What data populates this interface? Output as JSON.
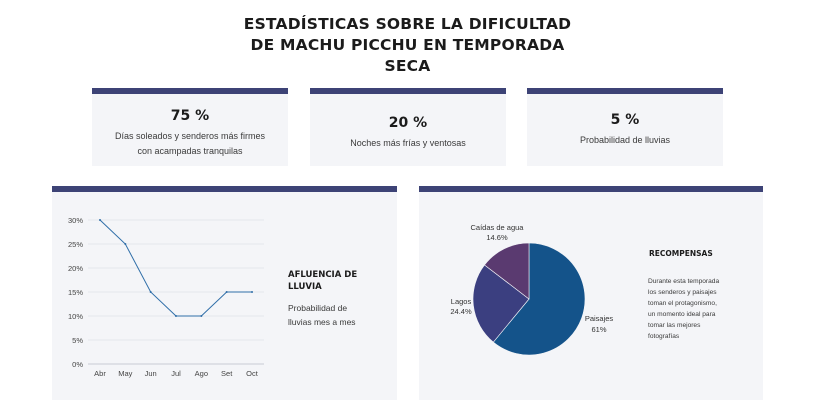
{
  "title": {
    "line1": "ESTADÍSTICAS SOBRE LA DIFICULTAD",
    "line2": "DE MACHU PICCHU EN TEMPORADA",
    "line3": "SECA"
  },
  "stats": [
    {
      "value": "75 %",
      "desc_line1": "Días soleados y senderos más firmes",
      "desc_line2": "con acampadas tranquilas"
    },
    {
      "value": "20 %",
      "desc_line1": "Noches más frías y ventosas",
      "desc_line2": ""
    },
    {
      "value": "5 %",
      "desc_line1": "Probabilidad de lluvias",
      "desc_line2": ""
    }
  ],
  "rain_panel": {
    "heading_line1": "AFLUENCIA DE",
    "heading_line2": "LLUVIA",
    "desc_line1": "Probabilidad de",
    "desc_line2": "lluvias mes a mes"
  },
  "rewards_panel": {
    "heading": "RECOMPENSAS",
    "body_lines": [
      "Durante esta temporada",
      "los senderos y paisajes",
      "toman el protagonismo,",
      "un momento ideal para",
      "tomar las mejores",
      "fotografías"
    ]
  },
  "colors": {
    "accent_bar": "#3d4376",
    "card_bg": "#f4f5f8",
    "line": "#2f6ea8",
    "pie_paisajes": "#14538a",
    "pie_lagos": "#3b3f80",
    "pie_caidas": "#5a3a70"
  },
  "chart_data": [
    {
      "type": "line",
      "categories": [
        "Abr",
        "May",
        "Jun",
        "Jul",
        "Ago",
        "Set",
        "Oct"
      ],
      "values": [
        30,
        25,
        15,
        10,
        10,
        15,
        15
      ],
      "yticks": [
        "0%",
        "5%",
        "10%",
        "15%",
        "20%",
        "25%",
        "30%"
      ],
      "ylim": [
        0,
        30
      ],
      "grid": true
    },
    {
      "type": "pie",
      "slices": [
        {
          "label": "Paisajes",
          "value": 61,
          "value_label": "61%"
        },
        {
          "label": "Lagos",
          "value": 24.4,
          "value_label": "24.4%"
        },
        {
          "label": "Caídas de agua",
          "value": 14.6,
          "value_label": "14.6%"
        }
      ]
    }
  ]
}
